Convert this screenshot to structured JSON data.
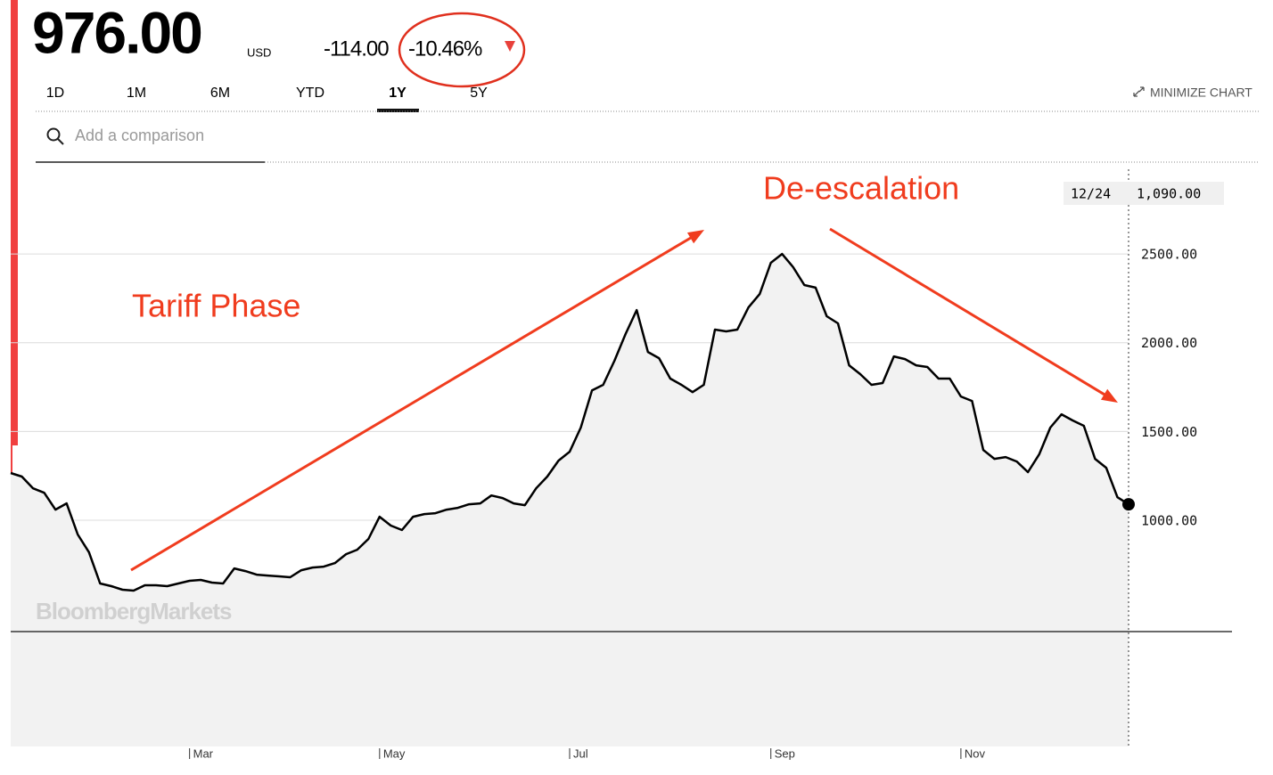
{
  "header": {
    "price": "976.00",
    "currency": "USD",
    "change": "-114.00",
    "change_percent": "-10.46%"
  },
  "tabs": [
    "1D",
    "1M",
    "6M",
    "YTD",
    "1Y",
    "5Y"
  ],
  "active_tab": "1Y",
  "minimize": "MINIMIZE CHART",
  "search_placeholder": "Add a comparison",
  "watermark": "BloombergMarkets",
  "chart_data": {
    "type": "line",
    "annotations": [
      "Tariff Phase",
      "De-escalation"
    ],
    "categories": [
      null,
      null,
      null,
      null,
      null,
      null,
      null,
      null,
      null,
      null,
      null,
      null,
      null,
      null,
      null,
      null,
      "Mar",
      null,
      null,
      null,
      null,
      null,
      null,
      null,
      null,
      null,
      null,
      null,
      null,
      null,
      null,
      null,
      null,
      "May",
      null,
      null,
      null,
      null,
      null,
      null,
      null,
      null,
      null,
      null,
      null,
      null,
      null,
      null,
      null,
      null,
      "Jul",
      null,
      null,
      null,
      null,
      null,
      null,
      null,
      null,
      null,
      null,
      null,
      null,
      null,
      null,
      null,
      null,
      null,
      "Sep",
      null,
      null,
      null,
      null,
      null,
      null,
      null,
      null,
      null,
      null,
      null,
      null,
      null,
      null,
      null,
      null,
      "Nov",
      null,
      null,
      null,
      null,
      null,
      null,
      null,
      null,
      null,
      null,
      null,
      null,
      null,
      null,
      null
    ],
    "series": [
      {
        "color": "#000000",
        "values": [
          1266,
          1246,
          1180,
          1155,
          1060,
          1095,
          920,
          820,
          644,
          629,
          609,
          604,
          634,
          634,
          629,
          644,
          659,
          664,
          649,
          644,
          729,
          714,
          694,
          689,
          684,
          679,
          719,
          734,
          739,
          759,
          809,
          834,
          895,
          1020,
          970,
          945,
          1020,
          1035,
          1040,
          1060,
          1070,
          1090,
          1095,
          1140,
          1125,
          1095,
          1085,
          1180,
          1246,
          1336,
          1386,
          1522,
          1732,
          1763,
          1898,
          2049,
          2184,
          1948,
          1913,
          1798,
          1763,
          1722,
          1763,
          2074,
          2064,
          2074,
          2199,
          2274,
          2450,
          2500,
          2425,
          2325,
          2310,
          2149,
          2109,
          1873,
          1823,
          1763,
          1773,
          1923,
          1908,
          1873,
          1863,
          1798,
          1798,
          1697,
          1672,
          1396,
          1346,
          1356,
          1331,
          1271,
          1371,
          1522,
          1597,
          1562,
          1532,
          1346,
          1296,
          1130,
          1090
        ]
      }
    ],
    "last_point": {
      "date": "12/24",
      "value": 1090,
      "label": "1,090.00"
    },
    "ylim": [
      -274,
      2977
    ],
    "yticks": [
      {
        "value": 1000,
        "label": "1000.00"
      },
      {
        "value": 1500,
        "label": "1500.00"
      },
      {
        "value": 2000,
        "label": "2000.00"
      },
      {
        "value": 2500,
        "label": "2500.00"
      }
    ],
    "grid": true,
    "area_color": "#f2f2f2",
    "annotation_color": "#f03c1e"
  }
}
